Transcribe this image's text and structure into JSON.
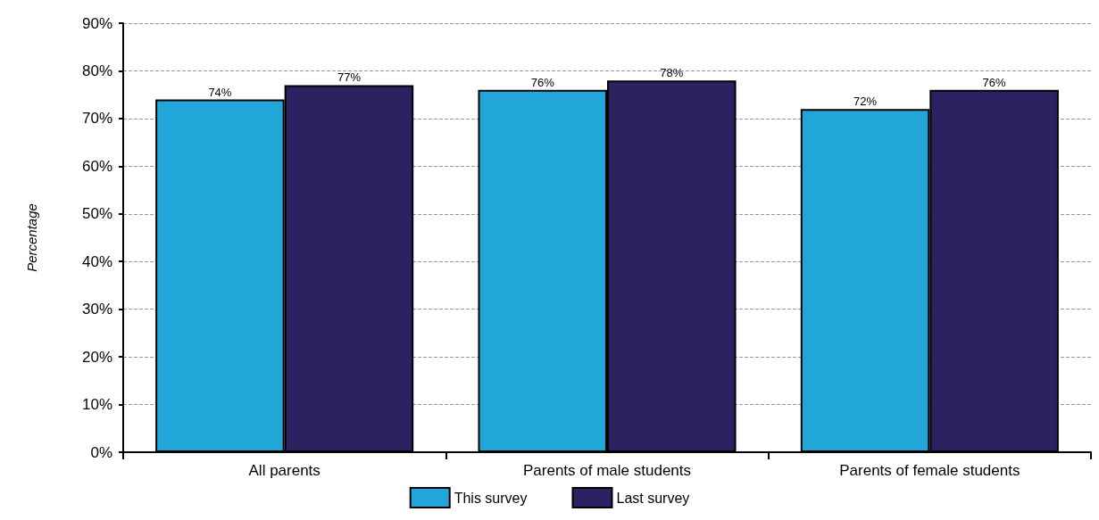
{
  "chart_data": {
    "type": "bar",
    "ylabel": "Percentage",
    "categories": [
      "All parents",
      "Parents of male students",
      "Parents of female students"
    ],
    "series": [
      {
        "name": "This survey",
        "color": "#22a5d8",
        "values": [
          74,
          76,
          72
        ],
        "value_labels": [
          "74%",
          "76%",
          "72%"
        ]
      },
      {
        "name": "Last survey",
        "color": "#2b2262",
        "values": [
          77,
          78,
          76
        ],
        "value_labels": [
          "77%",
          "78%",
          "76%"
        ]
      }
    ],
    "ylim": [
      0,
      90
    ],
    "yticks": [
      {
        "value": 0,
        "label": "0%"
      },
      {
        "value": 10,
        "label": "10%"
      },
      {
        "value": 20,
        "label": "20%"
      },
      {
        "value": 30,
        "label": "30%"
      },
      {
        "value": 40,
        "label": "40%"
      },
      {
        "value": 50,
        "label": "50%"
      },
      {
        "value": 60,
        "label": "60%"
      },
      {
        "value": 70,
        "label": "70%"
      },
      {
        "value": 80,
        "label": "80%"
      },
      {
        "value": 90,
        "label": "90%"
      }
    ],
    "grid": "y",
    "legend": "bottom"
  }
}
